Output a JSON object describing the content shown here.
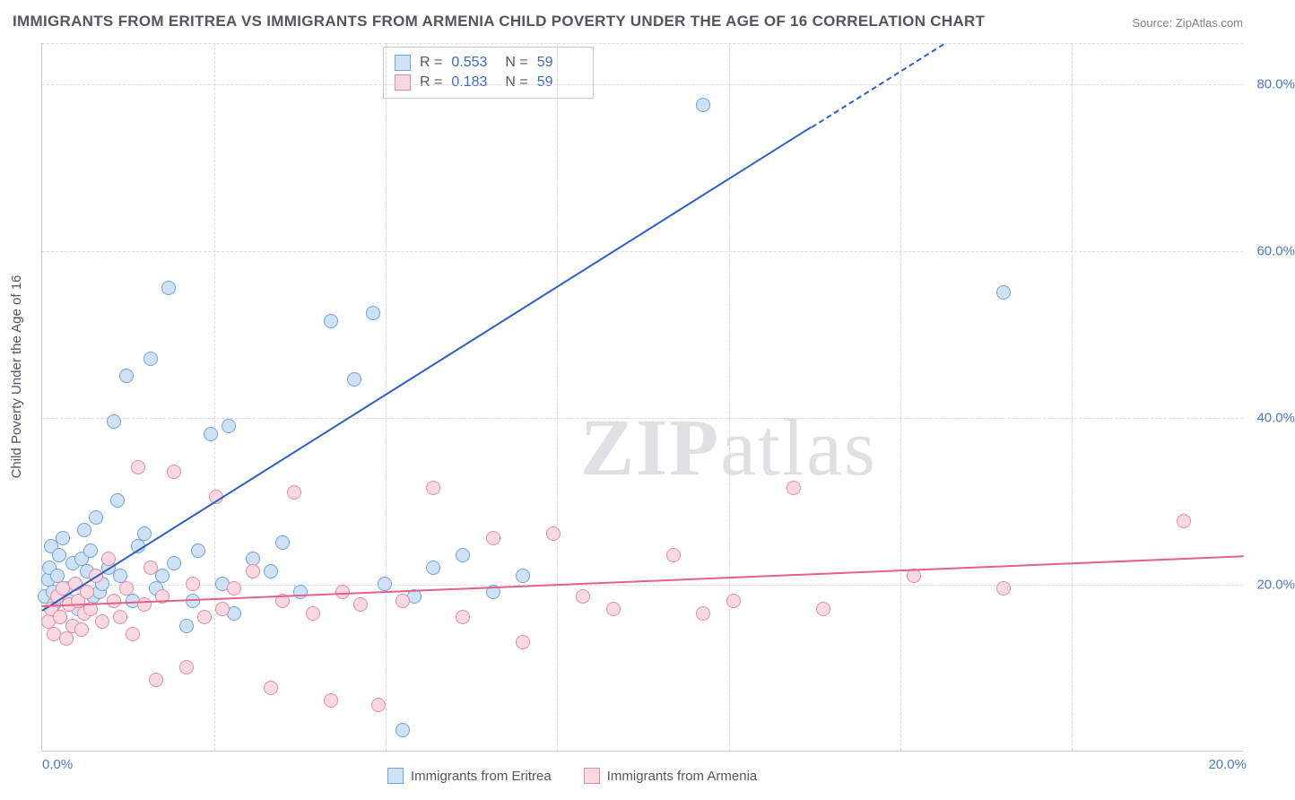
{
  "title": "IMMIGRANTS FROM ERITREA VS IMMIGRANTS FROM ARMENIA CHILD POVERTY UNDER THE AGE OF 16 CORRELATION CHART",
  "source": "Source: ZipAtlas.com",
  "yaxis_title": "Child Poverty Under the Age of 16",
  "watermark_a": "ZIP",
  "watermark_b": "atlas",
  "chart": {
    "type": "scatter",
    "background_color": "#ffffff",
    "grid_color": "#d8d8de",
    "axis_color": "#c8c8d0",
    "tick_color": "#4a78c8",
    "label_color": "#555560",
    "title_fontsize": 17,
    "tick_fontsize": 15,
    "xlim": [
      0,
      20
    ],
    "ylim": [
      0,
      85
    ],
    "yticks": [
      20,
      40,
      60,
      80
    ],
    "ytick_labels": [
      "20.0%",
      "40.0%",
      "60.0%",
      "80.0%"
    ],
    "xticks": [
      0,
      20
    ],
    "xtick_labels": [
      "0.0%",
      "20.0%"
    ],
    "x_minor_ticks": [
      2.86,
      5.71,
      8.57,
      11.43,
      14.29,
      17.14
    ],
    "marker_radius": 8,
    "marker_border_width": 1.5,
    "series": [
      {
        "name": "Immigrants from Eritrea",
        "fill": "#cfe1f5",
        "stroke": "#6fa3de",
        "line_color": "#2d5fc4",
        "R": "0.553",
        "N": "59",
        "regression": {
          "x1": 0,
          "y1": 17.0,
          "x2": 15.0,
          "y2": 85.0,
          "dashed_after_x": 12.8
        },
        "points": [
          [
            0.05,
            18.5
          ],
          [
            0.1,
            20.5
          ],
          [
            0.12,
            22.0
          ],
          [
            0.15,
            24.5
          ],
          [
            0.18,
            19.0
          ],
          [
            0.2,
            17.5
          ],
          [
            0.25,
            21.0
          ],
          [
            0.28,
            23.5
          ],
          [
            0.3,
            16.0
          ],
          [
            0.35,
            25.5
          ],
          [
            0.4,
            19.5
          ],
          [
            0.45,
            18.0
          ],
          [
            0.5,
            22.5
          ],
          [
            0.55,
            20.0
          ],
          [
            0.6,
            17.0
          ],
          [
            0.65,
            23.0
          ],
          [
            0.7,
            26.5
          ],
          [
            0.75,
            21.5
          ],
          [
            0.8,
            24.0
          ],
          [
            0.85,
            18.5
          ],
          [
            0.9,
            28.0
          ],
          [
            0.95,
            19.0
          ],
          [
            1.0,
            20.0
          ],
          [
            1.1,
            22.0
          ],
          [
            1.2,
            39.5
          ],
          [
            1.25,
            30.0
          ],
          [
            1.3,
            21.0
          ],
          [
            1.4,
            45.0
          ],
          [
            1.5,
            18.0
          ],
          [
            1.6,
            24.5
          ],
          [
            1.7,
            26.0
          ],
          [
            1.8,
            47.0
          ],
          [
            1.9,
            19.5
          ],
          [
            2.0,
            21.0
          ],
          [
            2.1,
            55.5
          ],
          [
            2.2,
            22.5
          ],
          [
            2.4,
            15.0
          ],
          [
            2.5,
            18.0
          ],
          [
            2.6,
            24.0
          ],
          [
            2.8,
            38.0
          ],
          [
            3.0,
            20.0
          ],
          [
            3.1,
            39.0
          ],
          [
            3.2,
            16.5
          ],
          [
            3.5,
            23.0
          ],
          [
            3.8,
            21.5
          ],
          [
            4.0,
            25.0
          ],
          [
            4.3,
            19.0
          ],
          [
            4.8,
            51.5
          ],
          [
            5.2,
            44.5
          ],
          [
            5.5,
            52.5
          ],
          [
            5.7,
            20.0
          ],
          [
            6.0,
            2.5
          ],
          [
            6.2,
            18.5
          ],
          [
            6.5,
            22.0
          ],
          [
            7.0,
            23.5
          ],
          [
            7.5,
            19.0
          ],
          [
            8.0,
            21.0
          ],
          [
            11.0,
            77.5
          ],
          [
            16.0,
            55.0
          ]
        ]
      },
      {
        "name": "Immigrants from Armenia",
        "fill": "#f8d9e1",
        "stroke": "#e58ba3",
        "line_color": "#e06285",
        "R": "0.183",
        "N": "59",
        "regression": {
          "x1": 0,
          "y1": 17.5,
          "x2": 20.0,
          "y2": 23.5,
          "dashed_after_x": 20.0
        },
        "points": [
          [
            0.1,
            15.5
          ],
          [
            0.15,
            17.0
          ],
          [
            0.2,
            14.0
          ],
          [
            0.25,
            18.5
          ],
          [
            0.3,
            16.0
          ],
          [
            0.35,
            19.5
          ],
          [
            0.4,
            13.5
          ],
          [
            0.45,
            17.5
          ],
          [
            0.5,
            15.0
          ],
          [
            0.55,
            20.0
          ],
          [
            0.6,
            18.0
          ],
          [
            0.65,
            14.5
          ],
          [
            0.7,
            16.5
          ],
          [
            0.75,
            19.0
          ],
          [
            0.8,
            17.0
          ],
          [
            0.9,
            21.0
          ],
          [
            1.0,
            15.5
          ],
          [
            1.1,
            23.0
          ],
          [
            1.2,
            18.0
          ],
          [
            1.3,
            16.0
          ],
          [
            1.4,
            19.5
          ],
          [
            1.5,
            14.0
          ],
          [
            1.6,
            34.0
          ],
          [
            1.7,
            17.5
          ],
          [
            1.8,
            22.0
          ],
          [
            1.9,
            8.5
          ],
          [
            2.0,
            18.5
          ],
          [
            2.2,
            33.5
          ],
          [
            2.4,
            10.0
          ],
          [
            2.5,
            20.0
          ],
          [
            2.7,
            16.0
          ],
          [
            2.9,
            30.5
          ],
          [
            3.0,
            17.0
          ],
          [
            3.2,
            19.5
          ],
          [
            3.5,
            21.5
          ],
          [
            3.8,
            7.5
          ],
          [
            4.0,
            18.0
          ],
          [
            4.2,
            31.0
          ],
          [
            4.5,
            16.5
          ],
          [
            4.8,
            6.0
          ],
          [
            5.0,
            19.0
          ],
          [
            5.3,
            17.5
          ],
          [
            5.6,
            5.5
          ],
          [
            6.0,
            18.0
          ],
          [
            6.5,
            31.5
          ],
          [
            7.0,
            16.0
          ],
          [
            7.5,
            25.5
          ],
          [
            8.0,
            13.0
          ],
          [
            8.5,
            26.0
          ],
          [
            9.0,
            18.5
          ],
          [
            9.5,
            17.0
          ],
          [
            10.5,
            23.5
          ],
          [
            11.0,
            16.5
          ],
          [
            11.5,
            18.0
          ],
          [
            12.5,
            31.5
          ],
          [
            13.0,
            17.0
          ],
          [
            14.5,
            21.0
          ],
          [
            16.0,
            19.5
          ],
          [
            19.0,
            27.5
          ]
        ]
      }
    ]
  },
  "stats_labels": {
    "R": "R =",
    "N": "N ="
  },
  "legend": {
    "series1": "Immigrants from Eritrea",
    "series2": "Immigrants from Armenia"
  }
}
